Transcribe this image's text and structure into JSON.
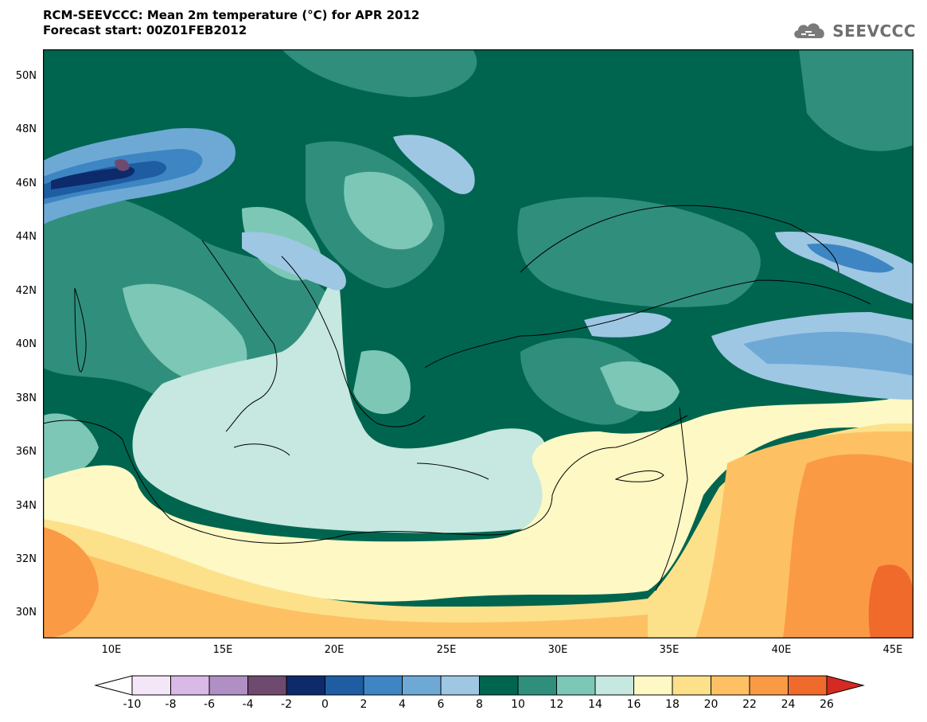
{
  "title": {
    "line1": "RCM-SEEVCCC: Mean 2m temperature (°C) for APR 2012",
    "line2": "Forecast start: 00Z01FEB2012"
  },
  "logo": {
    "text": "SEEVCCC",
    "icon": "cloud-icon"
  },
  "map": {
    "lat_range": [
      29,
      51
    ],
    "lon_range": [
      7,
      46
    ],
    "y_ticks": [
      "50N",
      "48N",
      "46N",
      "44N",
      "42N",
      "40N",
      "38N",
      "36N",
      "34N",
      "32N",
      "30N"
    ],
    "x_ticks": [
      "10E",
      "15E",
      "20E",
      "25E",
      "30E",
      "35E",
      "40E",
      "45E"
    ]
  },
  "colorbar": {
    "labels": [
      "-10",
      "-8",
      "-6",
      "-4",
      "-2",
      "0",
      "2",
      "4",
      "6",
      "8",
      "10",
      "12",
      "14",
      "16",
      "18",
      "20",
      "22",
      "24",
      "26"
    ],
    "colors": [
      "#f3e6f7",
      "#d9b9e6",
      "#b08fc4",
      "#6e4a6e",
      "#0d2a6b",
      "#1f5da3",
      "#3d86c3",
      "#6ea9d6",
      "#9ec7e4",
      "#00654f",
      "#2f8f7c",
      "#7dc7b6",
      "#c6e8e0",
      "#fdf8c4",
      "#fde08a",
      "#fdc164",
      "#fb9a45",
      "#f06a2c"
    ],
    "under_color": "#ffffff",
    "over_color": "#d42a22"
  }
}
